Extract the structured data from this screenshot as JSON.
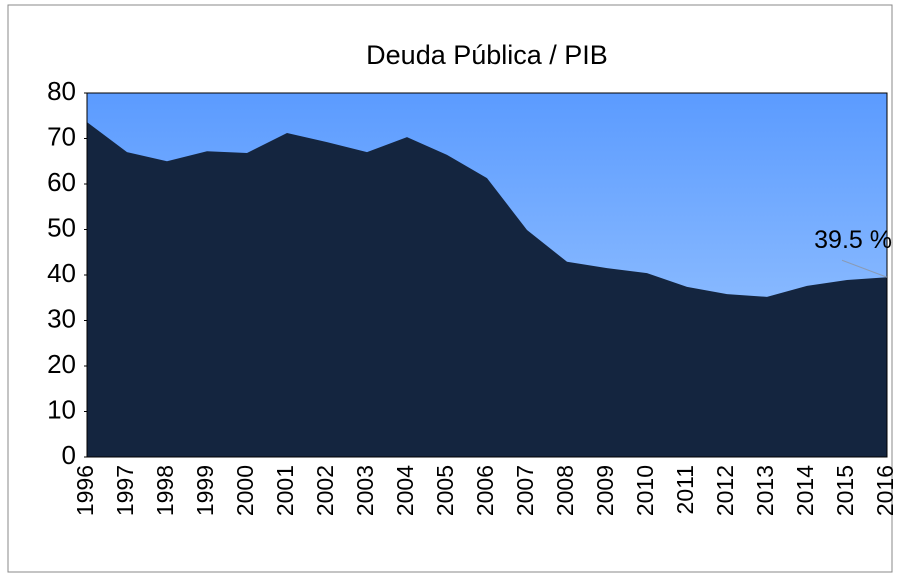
{
  "chart_data": {
    "type": "area",
    "title": "Deuda Pública / PIB",
    "categories": [
      "1996",
      "1997",
      "1998",
      "1999",
      "2000",
      "2001",
      "2002",
      "2003",
      "2004",
      "2005",
      "2006",
      "2007",
      "2008",
      "2009",
      "2010",
      "2011",
      "2012",
      "2013",
      "2014",
      "2015",
      "2016"
    ],
    "values": [
      73.6,
      67,
      65,
      67.2,
      66.8,
      71.2,
      69.2,
      67,
      70.3,
      66.4,
      61.3,
      49.9,
      42.9,
      41.5,
      40.4,
      37.4,
      35.8,
      35.2,
      37.6,
      38.9,
      39.5
    ],
    "value_labels": [
      null,
      null,
      null,
      null,
      null,
      null,
      null,
      null,
      null,
      null,
      null,
      null,
      null,
      null,
      null,
      null,
      null,
      null,
      null,
      null,
      "39.5 %"
    ],
    "color": "#14253f",
    "plot_background": [
      "#5b9bff",
      "#a9cfff"
    ],
    "ylim": [
      0,
      80
    ],
    "yticks": [
      0,
      10,
      20,
      30,
      40,
      50,
      60,
      70,
      80
    ],
    "grid": false
  }
}
